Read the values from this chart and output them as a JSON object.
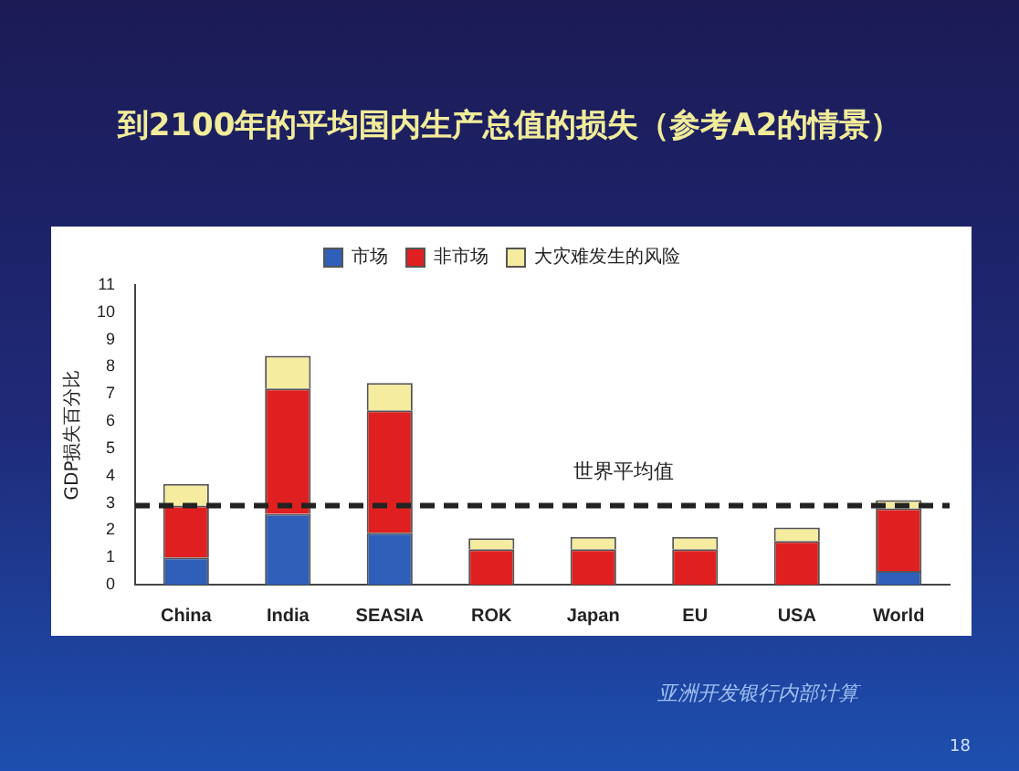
{
  "chart_data": {
    "type": "bar",
    "title": "到2100年的平均国内生产总值的损失（参考A2的情景）",
    "ylabel": "GDP损失百分比",
    "categories": [
      "China",
      "India",
      "SEASIA",
      "ROK",
      "Japan",
      "EU",
      "USA",
      "World"
    ],
    "series": [
      {
        "name": "市场",
        "color": "#2f5fb8",
        "values": [
          1.0,
          2.6,
          1.9,
          0,
          0,
          0,
          0,
          0.5
        ]
      },
      {
        "name": "非市场",
        "color": "#e02020",
        "values": [
          1.9,
          4.6,
          4.5,
          1.3,
          1.3,
          1.3,
          1.6,
          2.3
        ]
      },
      {
        "name": "大灾难发生的风险",
        "color": "#f5eca0",
        "values": [
          0.8,
          1.2,
          1.0,
          0.4,
          0.45,
          0.45,
          0.5,
          0.3
        ]
      }
    ],
    "stacked": true,
    "ylim": [
      0,
      11
    ],
    "yticks": [
      0,
      1,
      2,
      3,
      4,
      5,
      6,
      7,
      8,
      9,
      10,
      11
    ],
    "grid": false,
    "legend": "top",
    "ref_lines": [
      {
        "axis": "y",
        "value": 2.9,
        "label": "世界平均值",
        "line_style": "dashed",
        "color": "#222222"
      }
    ],
    "annotations": [
      "亚洲开发银行内部计算",
      "18"
    ]
  }
}
